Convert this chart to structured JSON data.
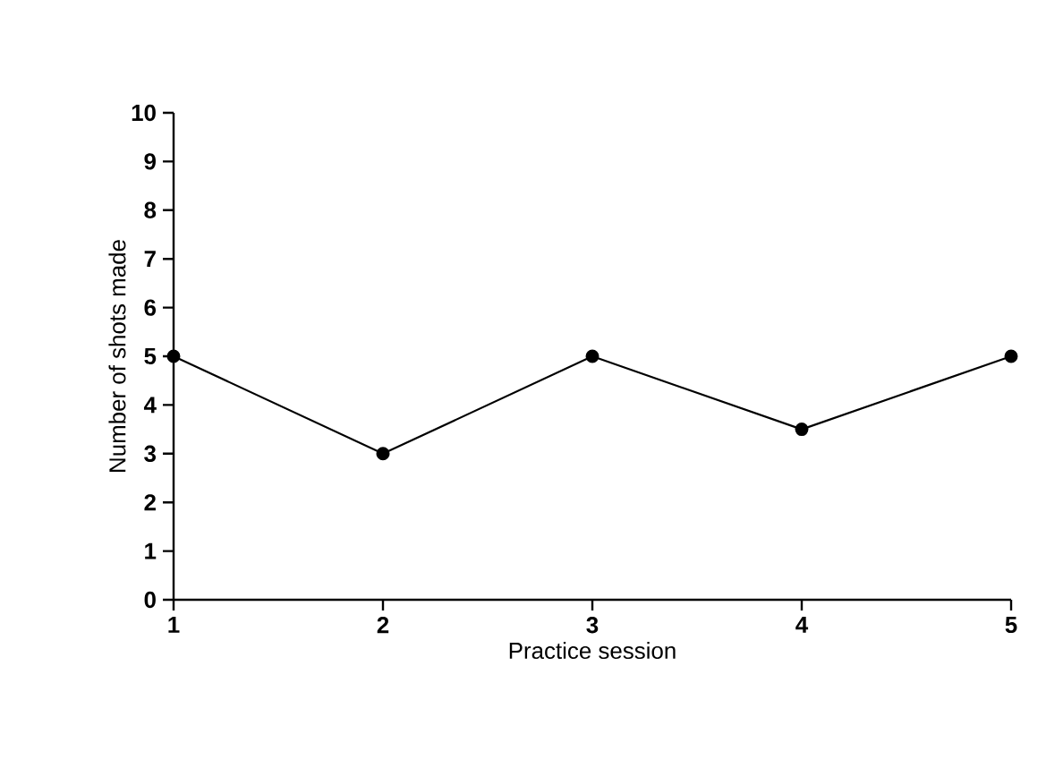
{
  "chart_data": {
    "type": "line",
    "xlabel": "Practice session",
    "ylabel": "Number of shots made",
    "x": [
      1,
      2,
      3,
      4,
      5
    ],
    "series": [
      {
        "color": "#000000",
        "values": [
          5,
          3,
          5,
          3.5,
          5
        ]
      }
    ],
    "xlim": [
      1,
      5
    ],
    "xticks": [
      1,
      2,
      3,
      4,
      5
    ],
    "ylim": [
      0,
      10
    ],
    "yticks": [
      0,
      1,
      2,
      3,
      4,
      5,
      6,
      7,
      8,
      9,
      10
    ],
    "marker": "circle",
    "line_style": "solid"
  }
}
